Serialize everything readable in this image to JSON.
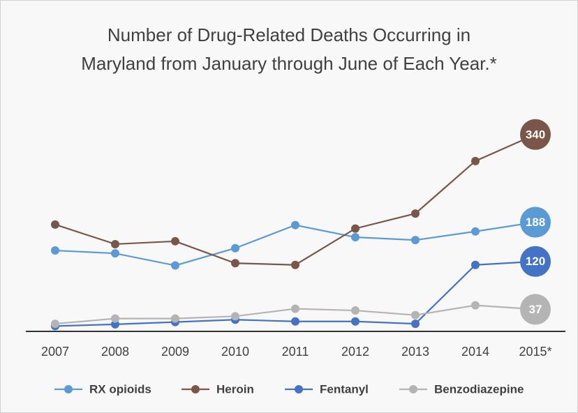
{
  "chart_data": {
    "type": "line",
    "title": [
      "Number of Drug-Related Deaths Occurring in",
      "Maryland from January through June of Each Year.*"
    ],
    "categories": [
      "2007",
      "2008",
      "2009",
      "2010",
      "2011",
      "2012",
      "2013",
      "2014",
      "2015*"
    ],
    "ylim": [
      0,
      370
    ],
    "series": [
      {
        "name": "RX opioids",
        "color": "#5b9bd5",
        "values": [
          139,
          134,
          113,
          143,
          183,
          162,
          157,
          172,
          188
        ]
      },
      {
        "name": "Heroin",
        "color": "#7a5649",
        "values": [
          184,
          150,
          155,
          117,
          114,
          177,
          203,
          294,
          340
        ]
      },
      {
        "name": "Fentanyl",
        "color": "#4472c4",
        "values": [
          8,
          11,
          15,
          19,
          16,
          16,
          12,
          114,
          120
        ]
      },
      {
        "name": "Benzodiazepine",
        "color": "#b4b4b4",
        "values": [
          12,
          21,
          21,
          25,
          38,
          35,
          27,
          44,
          37
        ]
      }
    ],
    "legend": "bottom"
  }
}
